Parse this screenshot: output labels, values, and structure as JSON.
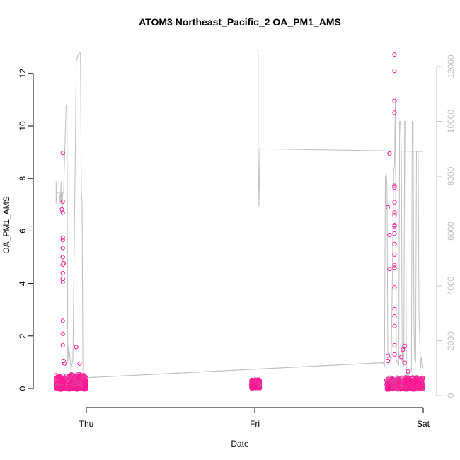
{
  "chart_data": {
    "type": "scatter",
    "title": "ATOM3 Northeast_Pacific_2 OA_PM1_AMS",
    "xlabel": "Date",
    "ylabel": "OA_PM1_AMS",
    "x_tick_labels": [
      "Thu",
      "Fri",
      "Sat"
    ],
    "x_ticks_days": [
      0,
      1,
      2
    ],
    "xlim_days": [
      -0.2,
      2.0
    ],
    "ylim": [
      -0.7,
      13.2
    ],
    "y_ticks": [
      0,
      2,
      4,
      6,
      8,
      10,
      12
    ],
    "y_right_lim": [
      -200,
      13000
    ],
    "y_right_ticks": [
      0,
      2000,
      4000,
      6000,
      8000,
      10000,
      12000
    ],
    "grid": false,
    "colors": {
      "points": "#ff1493",
      "points_alt": "#e040a0",
      "altitude_line": "#bebebe",
      "right_axis": "#c0c0c0"
    },
    "series": [
      {
        "type": "scatter",
        "clusters": [
          {
            "x_range": [
              -0.18,
              0.0
            ],
            "y_base": [
              0.0,
              0.55
            ]
          },
          {
            "x_range": [
              0.98,
              1.03
            ],
            "y_base": [
              0.05,
              0.35
            ]
          },
          {
            "x_range": [
              1.78,
              2.0
            ],
            "y_base": [
              0.0,
              0.45
            ]
          }
        ],
        "outliers": [
          {
            "x": -0.14,
            "y": 8.97
          },
          {
            "x": -0.14,
            "y": 7.12
          },
          {
            "x": -0.145,
            "y": 6.82
          },
          {
            "x": -0.14,
            "y": 6.7
          },
          {
            "x": -0.14,
            "y": 5.75
          },
          {
            "x": -0.14,
            "y": 5.65
          },
          {
            "x": -0.14,
            "y": 5.35
          },
          {
            "x": -0.14,
            "y": 5.0
          },
          {
            "x": -0.135,
            "y": 4.77
          },
          {
            "x": -0.14,
            "y": 4.72
          },
          {
            "x": -0.14,
            "y": 4.4
          },
          {
            "x": -0.14,
            "y": 4.18
          },
          {
            "x": -0.14,
            "y": 4.05
          },
          {
            "x": -0.14,
            "y": 2.58
          },
          {
            "x": -0.14,
            "y": 2.08
          },
          {
            "x": -0.14,
            "y": 1.65
          },
          {
            "x": -0.135,
            "y": 1.05
          },
          {
            "x": -0.13,
            "y": 0.95
          },
          {
            "x": -0.06,
            "y": 1.58
          },
          {
            "x": -0.04,
            "y": 0.95
          },
          {
            "x": 1.8,
            "y": 8.95
          },
          {
            "x": 1.79,
            "y": 6.9
          },
          {
            "x": 1.8,
            "y": 5.85
          },
          {
            "x": 1.8,
            "y": 4.55
          },
          {
            "x": 1.83,
            "y": 12.72
          },
          {
            "x": 1.83,
            "y": 12.1
          },
          {
            "x": 1.83,
            "y": 10.95
          },
          {
            "x": 1.83,
            "y": 10.5
          },
          {
            "x": 1.83,
            "y": 7.72
          },
          {
            "x": 1.83,
            "y": 7.65
          },
          {
            "x": 1.83,
            "y": 7.1
          },
          {
            "x": 1.83,
            "y": 6.7
          },
          {
            "x": 1.83,
            "y": 6.6
          },
          {
            "x": 1.83,
            "y": 6.22
          },
          {
            "x": 1.83,
            "y": 6.18
          },
          {
            "x": 1.83,
            "y": 5.9
          },
          {
            "x": 1.83,
            "y": 5.5
          },
          {
            "x": 1.83,
            "y": 5.1
          },
          {
            "x": 1.83,
            "y": 4.7
          },
          {
            "x": 1.83,
            "y": 4.6
          },
          {
            "x": 1.83,
            "y": 3.85
          },
          {
            "x": 1.83,
            "y": 3.02
          },
          {
            "x": 1.83,
            "y": 2.75
          },
          {
            "x": 1.83,
            "y": 2.38
          },
          {
            "x": 1.83,
            "y": 1.65
          },
          {
            "x": 1.83,
            "y": 1.3
          },
          {
            "x": 1.79,
            "y": 1.25
          },
          {
            "x": 1.79,
            "y": 1.05
          },
          {
            "x": 1.87,
            "y": 1.2
          },
          {
            "x": 1.88,
            "y": 1.48
          },
          {
            "x": 1.89,
            "y": 1.62
          },
          {
            "x": 1.89,
            "y": 0.98
          },
          {
            "x": 1.91,
            "y": 0.65
          }
        ]
      },
      {
        "type": "line",
        "axis": "right",
        "points": [
          [
            -0.18,
            7800
          ],
          [
            -0.18,
            7000
          ],
          [
            -0.175,
            7700
          ],
          [
            -0.175,
            7400
          ],
          [
            -0.16,
            7400
          ],
          [
            -0.155,
            7000
          ],
          [
            -0.15,
            7800
          ],
          [
            -0.15,
            7400
          ],
          [
            -0.145,
            6700
          ],
          [
            -0.14,
            7400
          ],
          [
            -0.135,
            7400
          ],
          [
            -0.12,
            10600
          ],
          [
            -0.115,
            10600
          ],
          [
            -0.11,
            1200
          ],
          [
            -0.105,
            1800
          ],
          [
            -0.09,
            1000
          ],
          [
            -0.08,
            1300
          ],
          [
            -0.065,
            9000
          ],
          [
            -0.06,
            12200
          ],
          [
            -0.05,
            12400
          ],
          [
            -0.04,
            12500
          ],
          [
            -0.035,
            12500
          ],
          [
            -0.03,
            7500
          ],
          [
            -0.025,
            7000
          ],
          [
            -0.02,
            800
          ],
          [
            -0.01,
            700
          ],
          [
            0.0,
            650
          ],
          [
            1.76,
            1200
          ],
          [
            1.77,
            1100
          ],
          [
            1.775,
            8000
          ],
          [
            1.78,
            8100
          ],
          [
            1.785,
            7700
          ],
          [
            1.79,
            1600
          ],
          [
            1.8,
            1500
          ],
          [
            1.81,
            1200
          ],
          [
            1.825,
            8200
          ],
          [
            1.83,
            8400
          ],
          [
            1.835,
            10800
          ],
          [
            1.84,
            1300
          ],
          [
            1.855,
            1100
          ],
          [
            1.86,
            10000
          ],
          [
            1.865,
            10000
          ],
          [
            1.87,
            8800
          ],
          [
            1.875,
            1200
          ],
          [
            1.885,
            1100
          ],
          [
            1.89,
            10000
          ],
          [
            1.895,
            10000
          ],
          [
            1.9,
            800
          ],
          [
            1.91,
            700
          ],
          [
            1.93,
            900
          ],
          [
            1.935,
            10000
          ],
          [
            1.94,
            10000
          ],
          [
            1.945,
            2500
          ],
          [
            1.95,
            1300
          ],
          [
            1.955,
            1200
          ],
          [
            1.96,
            8900
          ],
          [
            1.97,
            8900
          ],
          [
            1.975,
            3000
          ],
          [
            1.98,
            2000
          ],
          [
            1.985,
            1000
          ],
          [
            1.99,
            1400
          ],
          [
            2.0,
            1000
          ]
        ],
        "segments": [
          [
            [
              0.0,
              650
            ],
            [
              1.77,
              1200
            ]
          ],
          [
            [
              1.01,
              12600
            ],
            [
              1.02,
              12600
            ],
            [
              1.02,
              9100
            ],
            [
              1.025,
              6900
            ],
            [
              1.03,
              8900
            ],
            [
              1.03,
              9000
            ],
            [
              2.0,
              8900
            ]
          ]
        ]
      }
    ]
  }
}
